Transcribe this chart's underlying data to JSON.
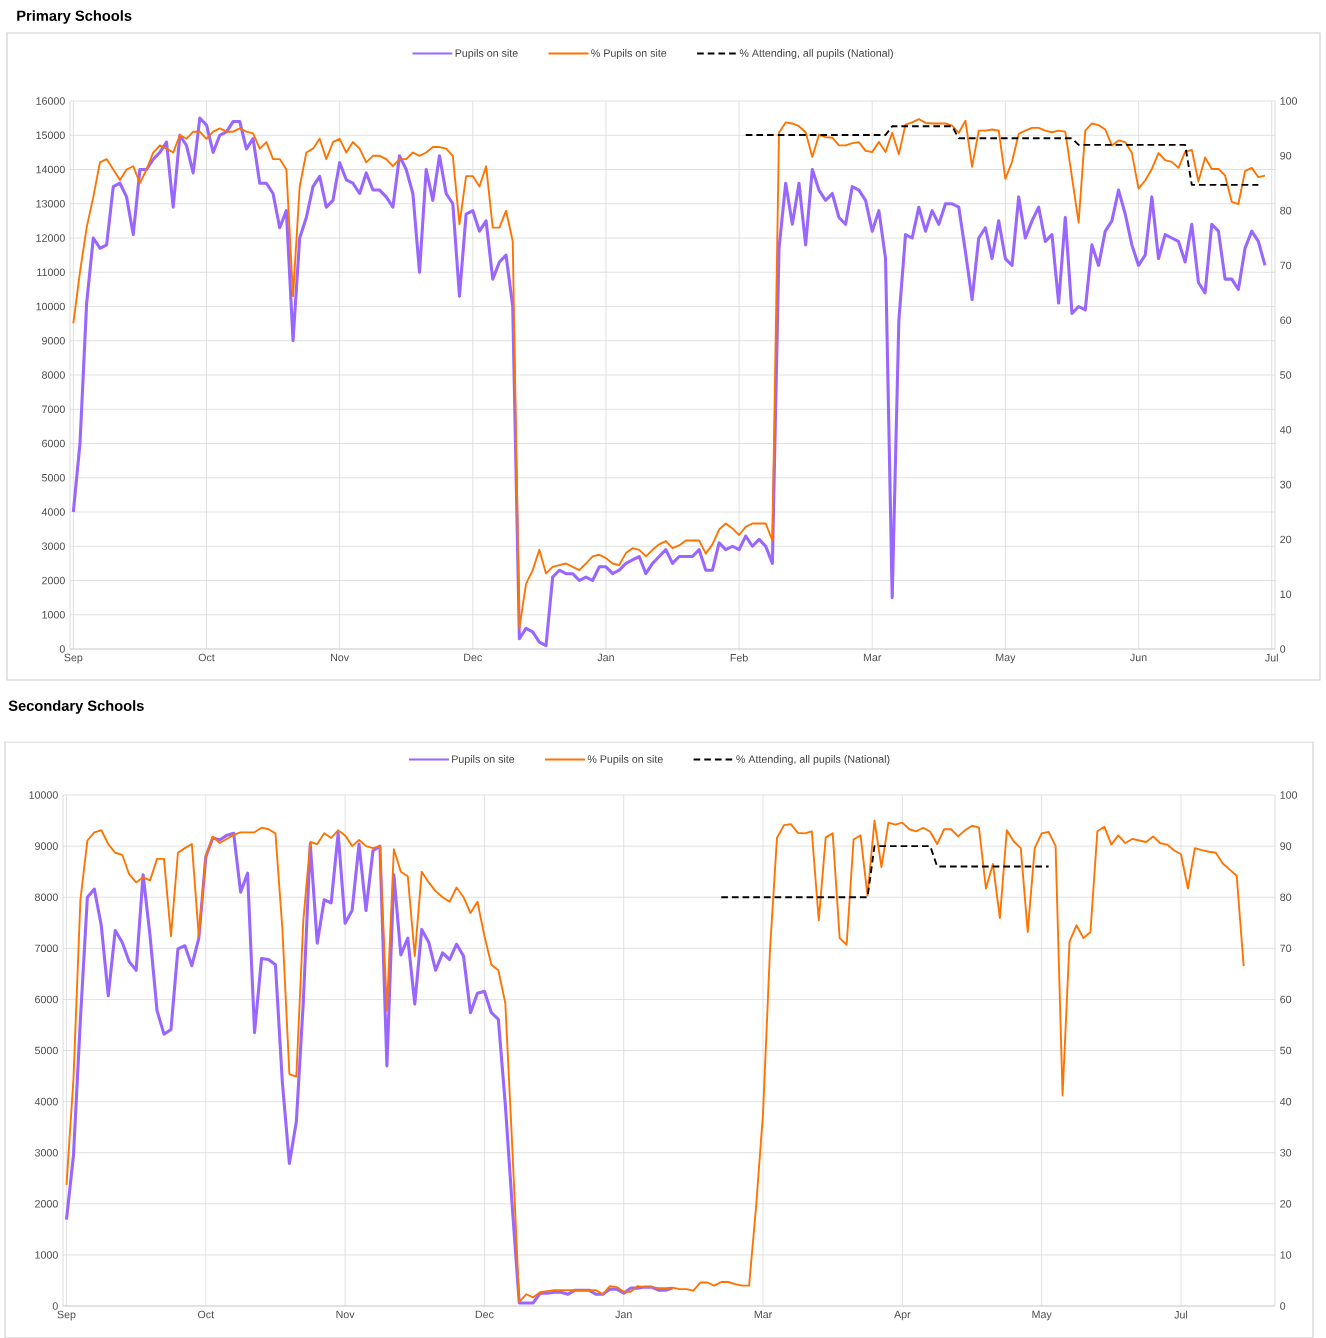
{
  "chart_data": [
    {
      "type": "line",
      "title": "Primary Schools",
      "grid": true,
      "legend": "top",
      "categories": [
        "Sep",
        null,
        null,
        null,
        null,
        null,
        null,
        null,
        null,
        null,
        null,
        null,
        null,
        null,
        null,
        null,
        null,
        null,
        null,
        null,
        "Oct",
        null,
        null,
        null,
        null,
        null,
        null,
        null,
        null,
        null,
        null,
        null,
        null,
        null,
        null,
        null,
        null,
        null,
        null,
        null,
        "Nov",
        null,
        null,
        null,
        null,
        null,
        null,
        null,
        null,
        null,
        null,
        null,
        null,
        null,
        null,
        null,
        null,
        null,
        null,
        null,
        "Dec",
        null,
        null,
        null,
        null,
        null,
        null,
        null,
        null,
        null,
        null,
        null,
        null,
        null,
        null,
        null,
        null,
        null,
        null,
        null,
        "Jan",
        null,
        null,
        null,
        null,
        null,
        null,
        null,
        null,
        null,
        null,
        null,
        null,
        null,
        null,
        null,
        null,
        null,
        null,
        null,
        "Feb",
        null,
        null,
        null,
        null,
        null,
        null,
        null,
        null,
        null,
        null,
        null,
        null,
        null,
        null,
        null,
        null,
        null,
        null,
        null,
        "Mar",
        null,
        null,
        null,
        null,
        null,
        null,
        null,
        null,
        null,
        null,
        null,
        null,
        null,
        null,
        null,
        null,
        null,
        null,
        null,
        "May",
        null,
        null,
        null,
        null,
        null,
        null,
        null,
        null,
        null,
        null,
        null,
        null,
        null,
        null,
        null,
        null,
        null,
        null,
        null,
        "Jun",
        null,
        null,
        null,
        null,
        null,
        null,
        null,
        null,
        null,
        null,
        null,
        null,
        null,
        null,
        null,
        null,
        null,
        null,
        null,
        "Jul"
      ],
      "ylim": [
        0,
        16000
      ],
      "yticks": [
        0,
        1000,
        2000,
        3000,
        4000,
        5000,
        6000,
        7000,
        8000,
        9000,
        10000,
        11000,
        12000,
        13000,
        14000,
        15000,
        16000
      ],
      "y2lim": [
        0,
        100
      ],
      "y2ticks": [
        0,
        10,
        20,
        30,
        40,
        50,
        60,
        70,
        80,
        90,
        100
      ],
      "series": [
        {
          "name": "Pupils on site",
          "color": "#9966ff",
          "values": [
            4000,
            6000,
            10100,
            12000,
            11700,
            11800,
            13500,
            13600,
            13200,
            12100,
            14000,
            14000,
            14300,
            14500,
            14800,
            12900,
            15000,
            14700,
            13900,
            15500,
            15300,
            14500,
            15000,
            15100,
            15400,
            15400,
            14600,
            14900,
            13600,
            13600,
            13300,
            12300,
            12800,
            9000,
            12000,
            12600,
            13500,
            13800,
            12900,
            13100,
            14200,
            13700,
            13600,
            13300,
            13900,
            13400,
            13400,
            13200,
            12900,
            14400,
            14000,
            13300,
            11000,
            14000,
            13100,
            14400,
            13300,
            13000,
            10300,
            12700,
            12800,
            12200,
            12500,
            10800,
            11300,
            11500,
            10000,
            300,
            600,
            500,
            200,
            100,
            2100,
            2300,
            2200,
            2200,
            2000,
            2100,
            2000,
            2400,
            2400,
            2200,
            2300,
            2500,
            2600,
            2700,
            2200,
            2500,
            2700,
            2900,
            2500,
            2700,
            2700,
            2700,
            2900,
            2300,
            2300,
            3100,
            2900,
            3000,
            2900,
            3300,
            3000,
            3200,
            3000,
            2500,
            11700,
            13600,
            12400,
            13600,
            11800,
            14000,
            13400,
            13100,
            13300,
            12600,
            12400,
            13500,
            13400,
            13100,
            12200,
            12800,
            11400,
            1500,
            9600,
            12100,
            12000,
            12900,
            12200,
            12800,
            12400,
            13000,
            13000,
            12900,
            11600,
            10200,
            12000,
            12300,
            11400,
            12500,
            11400,
            11200,
            13200,
            12000,
            12500,
            12900,
            11900,
            12100,
            10100,
            12600,
            9800,
            10000,
            9900,
            11800,
            11200,
            12200,
            12500,
            13400,
            12700,
            11800,
            11200,
            11500,
            13200,
            11400,
            12100,
            12000,
            11900,
            11300,
            12400,
            10700,
            10400,
            12400,
            12200,
            10800,
            10800,
            10500,
            11700,
            12200,
            11900,
            11200,
            null
          ]
        },
        {
          "name": "% Pupils on site",
          "color": "#ff7300",
          "axis": "y2",
          "values": [
            59.4,
            68.8,
            76.9,
            82.5,
            88.8,
            89.4,
            87.5,
            85.6,
            87.5,
            88.1,
            85,
            87.5,
            90.6,
            91.9,
            91.3,
            90.6,
            93.8,
            93.1,
            94.4,
            94.4,
            93.1,
            94.4,
            95,
            94.4,
            94.4,
            95,
            94.4,
            94.1,
            91.3,
            92.5,
            89.4,
            89.4,
            87.5,
            64.4,
            84.4,
            90.6,
            91.3,
            93.1,
            89.4,
            92.5,
            93.1,
            90.6,
            92.5,
            91.3,
            88.8,
            90,
            90,
            89.4,
            88.1,
            89.4,
            89.4,
            90.6,
            90,
            90.6,
            91.6,
            91.6,
            91.3,
            90,
            77.5,
            86.3,
            86.3,
            84.4,
            88.1,
            76.9,
            76.9,
            80,
            74.4,
            3.8,
            11.9,
            14.4,
            18.1,
            13.8,
            15,
            15.3,
            15.6,
            15,
            14.4,
            15.6,
            16.9,
            17.2,
            16.6,
            15.6,
            15.3,
            17.5,
            18.4,
            18.1,
            16.9,
            18.1,
            19.1,
            19.7,
            18.4,
            18.9,
            19.8,
            19.8,
            19.8,
            17.4,
            19.1,
            21.8,
            22.9,
            22,
            20.8,
            22.3,
            22.9,
            22.9,
            22.9,
            19.8,
            94.2,
            96.1,
            95.9,
            95.4,
            94.3,
            89.8,
            93.8,
            93.4,
            93.3,
            91.9,
            91.9,
            92.3,
            92.5,
            90.9,
            90.7,
            92.5,
            90.7,
            94.2,
            90.3,
            95.7,
            96.1,
            96.7,
            96,
            95.9,
            95.9,
            95.9,
            95.5,
            94.2,
            96.4,
            88,
            94.6,
            94.6,
            94.8,
            94.6,
            85.8,
            88.9,
            94,
            94.6,
            95.1,
            95.1,
            94.6,
            94.3,
            94.6,
            94.4,
            86.1,
            77.8,
            94.6,
            95.9,
            95.6,
            94.8,
            91.9,
            92.8,
            92.5,
            90.5,
            84,
            85.5,
            87.6,
            90.5,
            89.2,
            88.9,
            87.8,
            90.7,
            91.1,
            85.3,
            89.7,
            87.6,
            87.6,
            86.4,
            81.6,
            81.2,
            87.2,
            87.8,
            86.1,
            86.4,
            null
          ]
        },
        {
          "name": "% Attending, all pupils (National)",
          "color": "#000000",
          "axis": "y2",
          "line_style": "dashed",
          "values": [
            null,
            null,
            null,
            null,
            null,
            null,
            null,
            null,
            null,
            null,
            null,
            null,
            null,
            null,
            null,
            null,
            null,
            null,
            null,
            null,
            null,
            null,
            null,
            null,
            null,
            null,
            null,
            null,
            null,
            null,
            null,
            null,
            null,
            null,
            null,
            null,
            null,
            null,
            null,
            null,
            null,
            null,
            null,
            null,
            null,
            null,
            null,
            null,
            null,
            null,
            null,
            null,
            null,
            null,
            null,
            null,
            null,
            null,
            null,
            null,
            null,
            null,
            null,
            null,
            null,
            null,
            null,
            null,
            null,
            null,
            null,
            null,
            null,
            null,
            null,
            null,
            null,
            null,
            null,
            null,
            null,
            null,
            null,
            null,
            null,
            null,
            null,
            null,
            null,
            null,
            null,
            null,
            null,
            null,
            null,
            null,
            null,
            null,
            null,
            null,
            null,
            93.8,
            93.8,
            93.8,
            93.8,
            93.8,
            93.8,
            93.8,
            93.8,
            93.8,
            93.8,
            93.8,
            93.8,
            93.8,
            93.8,
            93.8,
            93.8,
            93.8,
            93.8,
            93.8,
            93.8,
            93.8,
            93.8,
            95.4,
            95.4,
            95.4,
            95.4,
            95.4,
            95.4,
            95.4,
            95.4,
            95.4,
            95.4,
            93.2,
            93.2,
            93.2,
            93.2,
            93.2,
            93.2,
            93.2,
            93.2,
            93.2,
            93.2,
            93.2,
            93.2,
            93.2,
            93.2,
            93.2,
            93.2,
            93.2,
            93.2,
            92,
            92,
            92,
            92,
            92,
            92,
            92,
            92,
            92,
            92,
            92,
            92,
            92,
            92,
            92,
            92,
            92,
            84.7,
            84.7,
            84.7,
            84.7,
            84.7,
            84.7,
            84.7,
            84.7,
            84.7,
            84.7,
            84.7,
            null,
            null
          ]
        }
      ]
    },
    {
      "type": "line",
      "title": "Secondary Schools",
      "grid": true,
      "legend": "top",
      "categories": [
        "Sep",
        null,
        null,
        null,
        null,
        null,
        null,
        null,
        null,
        null,
        null,
        null,
        null,
        null,
        null,
        null,
        null,
        null,
        null,
        null,
        "Oct",
        null,
        null,
        null,
        null,
        null,
        null,
        null,
        null,
        null,
        null,
        null,
        null,
        null,
        null,
        null,
        null,
        null,
        null,
        null,
        "Nov",
        null,
        null,
        null,
        null,
        null,
        null,
        null,
        null,
        null,
        null,
        null,
        null,
        null,
        null,
        null,
        null,
        null,
        null,
        null,
        "Dec",
        null,
        null,
        null,
        null,
        null,
        null,
        null,
        null,
        null,
        null,
        null,
        null,
        null,
        null,
        null,
        null,
        null,
        null,
        null,
        "Jan",
        null,
        null,
        null,
        null,
        null,
        null,
        null,
        null,
        null,
        null,
        null,
        null,
        null,
        null,
        null,
        null,
        null,
        null,
        null,
        "Mar",
        null,
        null,
        null,
        null,
        null,
        null,
        null,
        null,
        null,
        null,
        null,
        null,
        null,
        null,
        null,
        null,
        null,
        null,
        null,
        "Apr",
        null,
        null,
        null,
        null,
        null,
        null,
        null,
        null,
        null,
        null,
        null,
        null,
        null,
        null,
        null,
        null,
        null,
        null,
        null,
        "May",
        null,
        null,
        null,
        null,
        null,
        null,
        null,
        null,
        null,
        null,
        null,
        null,
        null,
        null,
        null,
        null,
        null,
        null,
        null,
        "Jul",
        null,
        null,
        null,
        null,
        null,
        null,
        null,
        null,
        null,
        null,
        null,
        null,
        null
      ],
      "ylim": [
        0,
        10000
      ],
      "yticks": [
        0,
        1000,
        2000,
        3000,
        4000,
        5000,
        6000,
        7000,
        8000,
        9000,
        10000
      ],
      "y2lim": [
        0,
        100
      ],
      "y2ticks": [
        0,
        10,
        20,
        30,
        40,
        50,
        60,
        70,
        80,
        90,
        100
      ],
      "series": [
        {
          "name": "Pupils on site",
          "color": "#9966ff",
          "values": [
            1690,
            2940,
            5610,
            8000,
            8160,
            7440,
            6070,
            7350,
            7120,
            6740,
            6570,
            8440,
            7240,
            5780,
            5320,
            5410,
            6990,
            7050,
            6660,
            7200,
            8790,
            9160,
            9120,
            9210,
            9250,
            8100,
            8470,
            5350,
            6800,
            6780,
            6680,
            4360,
            2790,
            3610,
            5950,
            9040,
            7100,
            7950,
            7890,
            9250,
            7490,
            7740,
            9040,
            7740,
            8910,
            9000,
            4700,
            8440,
            6870,
            7200,
            5910,
            7370,
            7120,
            6570,
            6910,
            6780,
            7080,
            6850,
            5740,
            6120,
            6160,
            5740,
            5610,
            3940,
            1940,
            60,
            60,
            60,
            250,
            250,
            270,
            270,
            230,
            310,
            310,
            310,
            230,
            230,
            330,
            330,
            250,
            350,
            350,
            370,
            370,
            310,
            310,
            350,
            null,
            null,
            null,
            null,
            null,
            null,
            null,
            null,
            null,
            null,
            null,
            null,
            null,
            null,
            null,
            null,
            null,
            null,
            null,
            null,
            null,
            null,
            null,
            null,
            null,
            null,
            null,
            null,
            null,
            null,
            null,
            null,
            null,
            null,
            null,
            null,
            null,
            null,
            null,
            null,
            null,
            null,
            null,
            null,
            null,
            null,
            null,
            null,
            null,
            null,
            null,
            null,
            null,
            null,
            null,
            null,
            null,
            null,
            null,
            null,
            null,
            null,
            null,
            null,
            null,
            null,
            null,
            null,
            null,
            null,
            null,
            null,
            null,
            null,
            null,
            null,
            null,
            null,
            null,
            null,
            null,
            null,
            null,
            null,
            null,
            null
          ]
        },
        {
          "name": "% Pupils on site",
          "color": "#ff7300",
          "axis": "y2",
          "values": [
            23.7,
            44.4,
            79.5,
            91.1,
            92.7,
            93.1,
            90.4,
            88.7,
            88.3,
            84.5,
            82.9,
            83.9,
            83.3,
            87.5,
            87.5,
            72.4,
            88.7,
            89.6,
            90.4,
            72.2,
            87.9,
            91.9,
            90.6,
            91.4,
            92.2,
            92.7,
            92.7,
            92.7,
            93.6,
            93.3,
            92.5,
            73.7,
            45.4,
            44.9,
            75.4,
            90.8,
            90.4,
            92.5,
            91.6,
            93.1,
            92.1,
            90,
            91.2,
            90,
            89.6,
            90,
            57.8,
            89.4,
            85,
            84.1,
            68.5,
            85,
            82.9,
            81.2,
            80,
            79.1,
            81.9,
            80,
            76.9,
            79.1,
            72.4,
            66.8,
            65.7,
            59.3,
            31.1,
            0.8,
            2.3,
            1.7,
            2.7,
            2.9,
            3.1,
            3.1,
            3.1,
            3.1,
            3.1,
            3.1,
            3.1,
            2.3,
            3.9,
            3.7,
            2.8,
            2.8,
            3.9,
            3.7,
            3.7,
            3.5,
            3.5,
            3.6,
            3.3,
            3.3,
            3,
            4.6,
            4.6,
            4,
            4.7,
            4.7,
            4.3,
            4,
            4,
            19.4,
            37.7,
            69.7,
            91.6,
            94.1,
            94.3,
            92.6,
            92.5,
            92.9,
            75.5,
            91.7,
            92.5,
            72,
            70.7,
            91.3,
            92.1,
            80.3,
            95,
            85.9,
            94.6,
            94.2,
            94.6,
            93.3,
            92.9,
            93.6,
            92.8,
            90.4,
            93.3,
            93.3,
            91.9,
            93.1,
            94,
            93.6,
            81.7,
            86.5,
            75.9,
            93.1,
            90.9,
            89.6,
            73.2,
            89.6,
            92.5,
            92.8,
            90,
            41.2,
            71.3,
            74.5,
            72,
            73.2,
            92.9,
            93.8,
            90.3,
            92.1,
            90.6,
            91.4,
            91.1,
            90.8,
            91.9,
            90.6,
            90.3,
            89.2,
            88.4,
            81.7,
            89.6,
            89.2,
            88.9,
            88.7,
            86.6,
            85.4,
            84.2,
            66.5,
            null,
            null,
            null,
            null
          ]
        },
        {
          "name": "% Attending, all pupils (National)",
          "color": "#000000",
          "axis": "y2",
          "line_style": "dashed",
          "values": [
            null,
            null,
            null,
            null,
            null,
            null,
            null,
            null,
            null,
            null,
            null,
            null,
            null,
            null,
            null,
            null,
            null,
            null,
            null,
            null,
            null,
            null,
            null,
            null,
            null,
            null,
            null,
            null,
            null,
            null,
            null,
            null,
            null,
            null,
            null,
            null,
            null,
            null,
            null,
            null,
            null,
            null,
            null,
            null,
            null,
            null,
            null,
            null,
            null,
            null,
            null,
            null,
            null,
            null,
            null,
            null,
            null,
            null,
            null,
            null,
            null,
            null,
            null,
            null,
            null,
            null,
            null,
            null,
            null,
            null,
            null,
            null,
            null,
            null,
            null,
            null,
            null,
            null,
            null,
            null,
            null,
            null,
            null,
            null,
            null,
            null,
            null,
            null,
            null,
            null,
            null,
            null,
            null,
            null,
            80,
            80,
            80,
            80,
            80,
            80,
            80,
            80,
            80,
            80,
            80,
            80,
            80,
            80,
            80,
            80,
            80,
            80,
            80,
            80,
            80,
            80,
            90,
            90,
            90,
            90,
            90,
            90,
            90,
            90,
            90,
            86,
            86,
            86,
            86,
            86,
            86,
            86,
            86,
            86,
            86,
            86,
            86,
            86,
            86,
            86,
            86,
            86,
            null,
            null,
            null,
            null,
            null,
            null,
            null,
            null,
            null,
            null,
            null,
            null,
            null,
            null,
            null,
            null,
            null,
            null,
            null,
            null,
            null,
            null,
            null,
            null,
            null,
            null,
            null,
            null,
            null,
            null,
            null,
            null
          ]
        }
      ]
    }
  ]
}
